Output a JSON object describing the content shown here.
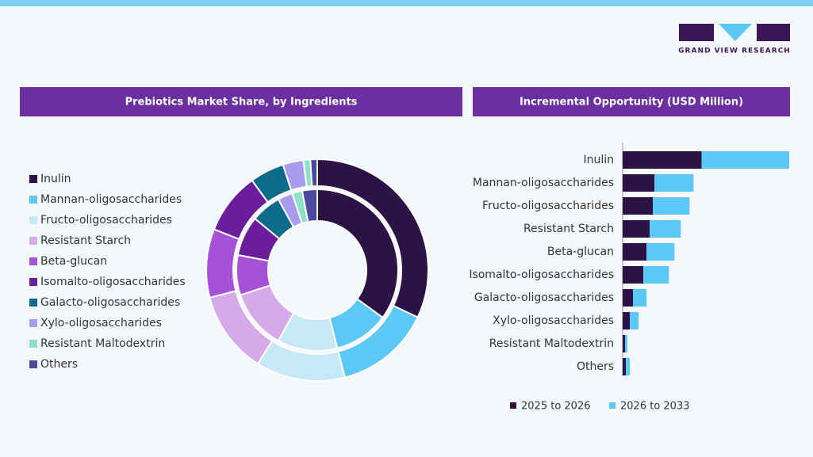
{
  "logo": "GRAND VIEW RESEARCH",
  "chart_data": [
    {
      "type": "donut",
      "title": "Prebiotics Market Share, by Ingredients",
      "categories": [
        "Inulin",
        "Mannan-oligosaccharides",
        "Fructo-oligosaccharides",
        "Resistant Starch",
        "Beta-glucan",
        "Isomalto-oligosaccharides",
        "Galacto-oligosaccharides",
        "Xylo-oligosaccharides",
        "Resistant Maltodextrin",
        "Others"
      ],
      "colors": [
        "#2d1245",
        "#5bc8f5",
        "#c5e9f7",
        "#d6aae8",
        "#a652d6",
        "#6a1e9c",
        "#0f6b8a",
        "#a99cf0",
        "#8ee0c6",
        "#4c4a9e"
      ],
      "series": [
        {
          "values": [
            32,
            14,
            13,
            12,
            10,
            9,
            5,
            3,
            1,
            1
          ]
        },
        {
          "values": [
            35,
            11,
            12,
            12,
            8,
            8,
            6,
            3,
            2,
            3
          ]
        }
      ]
    },
    {
      "type": "bar",
      "orientation": "horizontal",
      "stacked": true,
      "title": "Incremental Opportunity (USD Million)",
      "categories": [
        "Inulin",
        "Mannan-oligosaccharides",
        "Fructo-oligosaccharides",
        "Resistant Starch",
        "Beta-glucan",
        "Isomalto-oligosaccharides",
        "Galacto-oligosaccharides",
        "Xylo-oligosaccharides",
        "Resistant Maltodextrin",
        "Others"
      ],
      "series": [
        {
          "name": "2025 to 2026",
          "color": "#2d1245",
          "values": [
            99,
            40,
            38,
            34,
            30,
            26,
            13,
            9,
            3,
            4
          ]
        },
        {
          "name": "2026 to 2033",
          "color": "#5bc8f5",
          "values": [
            110,
            49,
            46,
            39,
            35,
            32,
            17,
            11,
            3,
            5
          ]
        }
      ]
    }
  ]
}
